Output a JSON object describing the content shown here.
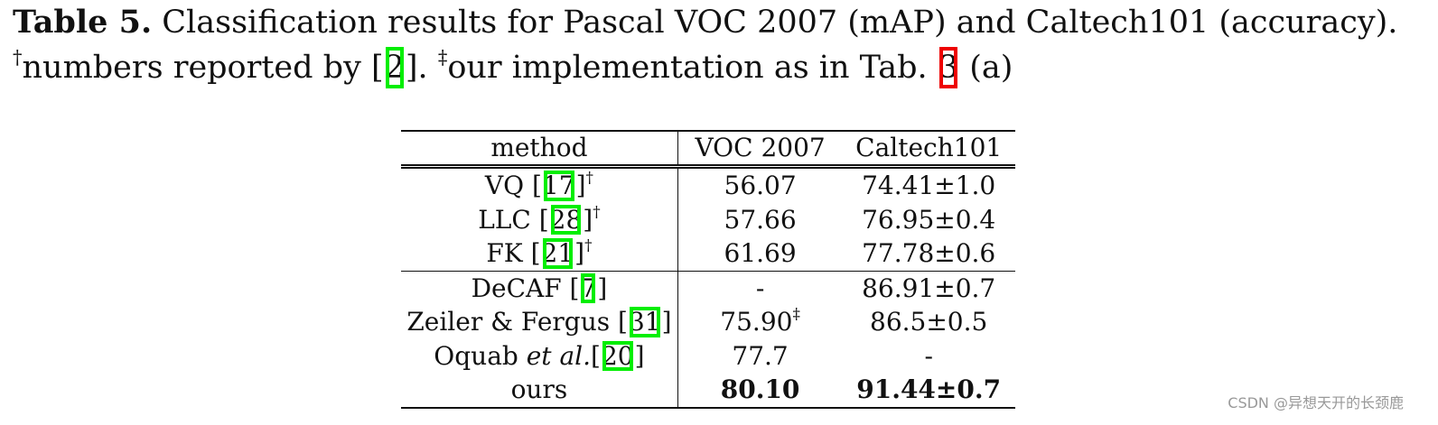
{
  "caption": {
    "label": "Table 5.",
    "text": "Classification results for Pascal VOC 2007 (mAP) and Caltech101 (accuracy).",
    "line2_mark1": "†",
    "line2_text1": "numbers reported by [",
    "line2_ref1": "2",
    "line2_text2": "]. ",
    "line2_mark2": "‡",
    "line2_text3": "our implementation as in Tab. ",
    "line2_ref2": "3",
    "line2_text4": " (a)"
  },
  "table": {
    "headers": [
      "method",
      "VOC 2007",
      "Caltech101"
    ],
    "rows": [
      {
        "name": "VQ [",
        "ref": "17",
        "post": "]",
        "mark": "†",
        "voc": "56.07",
        "voc_mark": "",
        "caltech": "74.41±1.0"
      },
      {
        "name": "LLC [",
        "ref": "28",
        "post": "]",
        "mark": "†",
        "voc": "57.66",
        "voc_mark": "",
        "caltech": "76.95±0.4"
      },
      {
        "name": "FK [",
        "ref": "21",
        "post": "]",
        "mark": "†",
        "voc": "61.69",
        "voc_mark": "",
        "caltech": "77.78±0.6"
      },
      {
        "name": "DeCAF [",
        "ref": "7",
        "post": "]",
        "mark": "",
        "voc": "-",
        "voc_mark": "",
        "caltech": "86.91±0.7"
      },
      {
        "name": "Zeiler & Fergus [",
        "ref": "31",
        "post": "]",
        "mark": "",
        "voc": "75.90",
        "voc_mark": "‡",
        "caltech": "86.5±0.5"
      },
      {
        "name": "Oquab ",
        "name_it": "et al.",
        "name_after": "[",
        "ref": "20",
        "post": "]",
        "mark": "",
        "voc": "77.7",
        "voc_mark": "",
        "caltech": "-"
      },
      {
        "name": "ours",
        "voc": "80.10",
        "caltech": "91.44±0.7"
      }
    ]
  },
  "watermark": "CSDN @异想天开的长颈鹿"
}
